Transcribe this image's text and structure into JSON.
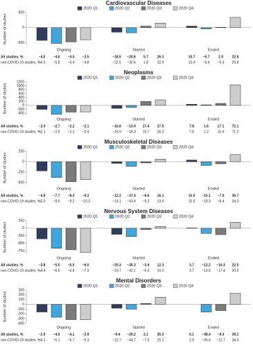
{
  "chart_data": [
    {
      "type": "bar",
      "title": "Cardiovascular Diseases",
      "ylabel": "Number of studies",
      "categories": [
        "Ongoing",
        "Started",
        "Ended"
      ],
      "series": [
        {
          "name": "2020 Q1",
          "color": "#2f3d5c",
          "values": [
            -420,
            -150,
            50
          ]
        },
        {
          "name": "2020 Q2",
          "color": "#3fa7dc",
          "values": [
            -520,
            -170,
            -40
          ]
        },
        {
          "name": "2020 Q3",
          "color": "#7b7b7b",
          "values": [
            -470,
            50,
            10
          ]
        },
        {
          "name": "2020 Q4",
          "color": "#cdcdcd",
          "values": [
            -400,
            150,
            340
          ]
        }
      ],
      "ylim": [
        -600,
        500
      ],
      "yticks": [
        -500,
        0,
        500
      ],
      "table": [
        {
          "label": "All studies, %",
          "values": [
            "−4.0",
            "−4.6",
            "−4.0",
            "−3.5",
            "−18.5",
            "−20.6",
            "5.7",
            "26.3",
            "10.7",
            "−5.7",
            "1.9",
            "32.8"
          ]
        },
        {
          "label": "non-COVID-19 studies, %",
          "values": [
            "−4.5",
            "−5.8",
            "−5.4",
            "−4.8",
            "−22.5",
            "−32.6",
            "1.8",
            "22.9",
            "10.4",
            "−9.4",
            "−0.3",
            "29.8"
          ]
        }
      ]
    },
    {
      "type": "bar",
      "title": "Neoplasms",
      "ylabel": "Number of studies",
      "categories": [
        "Ongoing",
        "Started",
        "Ended"
      ],
      "series": [
        {
          "name": "2020 Q1",
          "color": "#2f3d5c",
          "values": [
            -200,
            -150,
            60
          ]
        },
        {
          "name": "2020 Q2",
          "color": "#3fa7dc",
          "values": [
            -450,
            -100,
            30
          ]
        },
        {
          "name": "2020 Q3",
          "color": "#7b7b7b",
          "values": [
            -340,
            200,
            100
          ]
        },
        {
          "name": "2020 Q4",
          "color": "#cdcdcd",
          "values": [
            -330,
            280,
            1050
          ]
        }
      ],
      "ylim": [
        -500,
        1200
      ],
      "yticks": [
        -400,
        -200,
        0,
        200,
        400,
        600,
        800,
        1000,
        1200
      ],
      "table": [
        {
          "label": "All studies, %",
          "values": [
            "−2.0",
            "−2.7",
            "−2.2",
            "−2.1",
            "−16.6",
            "−13.9",
            "17.4",
            "27.5",
            "7.8",
            "1.6",
            "17.1",
            "72.1"
          ]
        },
        {
          "label": "non-COVID-19 studies, %",
          "values": [
            "−2.1",
            "−2.9",
            "−2.3",
            "−2.4",
            "−16.9",
            "−16.3",
            "15.7",
            "26.2",
            "7.8",
            "1.2",
            "16.6",
            "71.2"
          ]
        }
      ]
    },
    {
      "type": "bar",
      "title": "Musculoskeletal Diseases",
      "ylabel": "Number of studies",
      "categories": [
        "Ongoing",
        "Started",
        "Ended"
      ],
      "series": [
        {
          "name": "2020 Q1",
          "color": "#2f3d5c",
          "values": [
            -220,
            -40,
            40
          ]
        },
        {
          "name": "2020 Q2",
          "color": "#3fa7dc",
          "values": [
            -380,
            -110,
            -90
          ]
        },
        {
          "name": "2020 Q3",
          "color": "#7b7b7b",
          "values": [
            -480,
            -30,
            -50
          ]
        },
        {
          "name": "2020 Q4",
          "color": "#cdcdcd",
          "values": [
            -430,
            60,
            170
          ]
        }
      ],
      "ylim": [
        -550,
        250
      ],
      "yticks": [
        -500,
        -250,
        0,
        250
      ],
      "table": [
        {
          "label": "All studies, %",
          "values": [
            "−4.9",
            "−7.7",
            "−8.3",
            "−9.3",
            "−12.2",
            "−37.4",
            "−6.6",
            "16.1",
            "15.0",
            "−15.1",
            "−7.0",
            "36.7"
          ]
        },
        {
          "label": "non-COVID-19 studies, %",
          "values": [
            "−5.5",
            "−8.6",
            "−9.2",
            "−10.3",
            "−14.1",
            "−43.4",
            "−9.3",
            "13.0",
            "15.0",
            "−18.3",
            "−8.4",
            "34.3"
          ]
        }
      ]
    },
    {
      "type": "bar",
      "title": "Nervous System Diseases",
      "ylabel": "Number of studies",
      "categories": [
        "Ongoing",
        "Started",
        "Ended"
      ],
      "series": [
        {
          "name": "2020 Q1",
          "color": "#2f3d5c",
          "values": [
            -350,
            -200,
            10
          ]
        },
        {
          "name": "2020 Q2",
          "color": "#3fa7dc",
          "values": [
            -660,
            -270,
            -170
          ]
        },
        {
          "name": "2020 Q3",
          "color": "#7b7b7b",
          "values": [
            -710,
            -40,
            -210
          ]
        },
        {
          "name": "2020 Q4",
          "color": "#cdcdcd",
          "values": [
            -800,
            60,
            200
          ]
        }
      ],
      "ylim": [
        -850,
        250
      ],
      "yticks": [
        -750,
        -500,
        -250,
        0,
        250
      ],
      "table": [
        {
          "label": "All studies, %",
          "values": [
            "−3.8",
            "−5.5",
            "−5.5",
            "−6.0",
            "−20.3",
            "−35.3",
            "−3.4",
            "12.3",
            "3.7",
            "−12.2",
            "−16.3",
            "22.5"
          ]
        },
        {
          "label": "non-COVID-19 studies, %",
          "values": [
            "−4.4",
            "−6.6",
            "−6.8",
            "−7.3",
            "−23.7",
            "−42.1",
            "−6.3",
            "10.0",
            "3.7",
            "−13.5",
            "−17.4",
            "20.0"
          ]
        }
      ]
    },
    {
      "type": "bar",
      "title": "Mental Disorders",
      "ylabel": "Number of studies",
      "categories": [
        "Ongoing",
        "Started",
        "Ended"
      ],
      "series": [
        {
          "name": "2020 Q1",
          "color": "#2f3d5c",
          "values": [
            -160,
            -80,
            0
          ]
        },
        {
          "name": "2020 Q2",
          "color": "#3fa7dc",
          "values": [
            -270,
            -100,
            -160
          ]
        },
        {
          "name": "2020 Q3",
          "color": "#7b7b7b",
          "values": [
            -320,
            20,
            -130
          ]
        },
        {
          "name": "2020 Q4",
          "color": "#cdcdcd",
          "values": [
            -320,
            150,
            230
          ]
        }
      ],
      "ylim": [
        -400,
        300
      ],
      "yticks": [
        -400,
        -300,
        -200,
        -100,
        0,
        100,
        200,
        300
      ],
      "table": [
        {
          "label": "All studies, %",
          "values": [
            "−2.9",
            "−4.0",
            "−4.1",
            "−2.9",
            "−9.6",
            "−29.2",
            "2.1",
            "35.3",
            "0.1",
            "−38.4",
            "−9.3",
            "39.2"
          ]
        },
        {
          "label": "non-COVID-19 studies, %",
          "values": [
            "−4.1",
            "−6.1",
            "−6.7",
            "−5.3",
            "−12.7",
            "−44.7",
            "−7.5",
            "25.2",
            "2.9",
            "−35.4",
            "−12.7",
            "34.3"
          ]
        }
      ]
    }
  ]
}
